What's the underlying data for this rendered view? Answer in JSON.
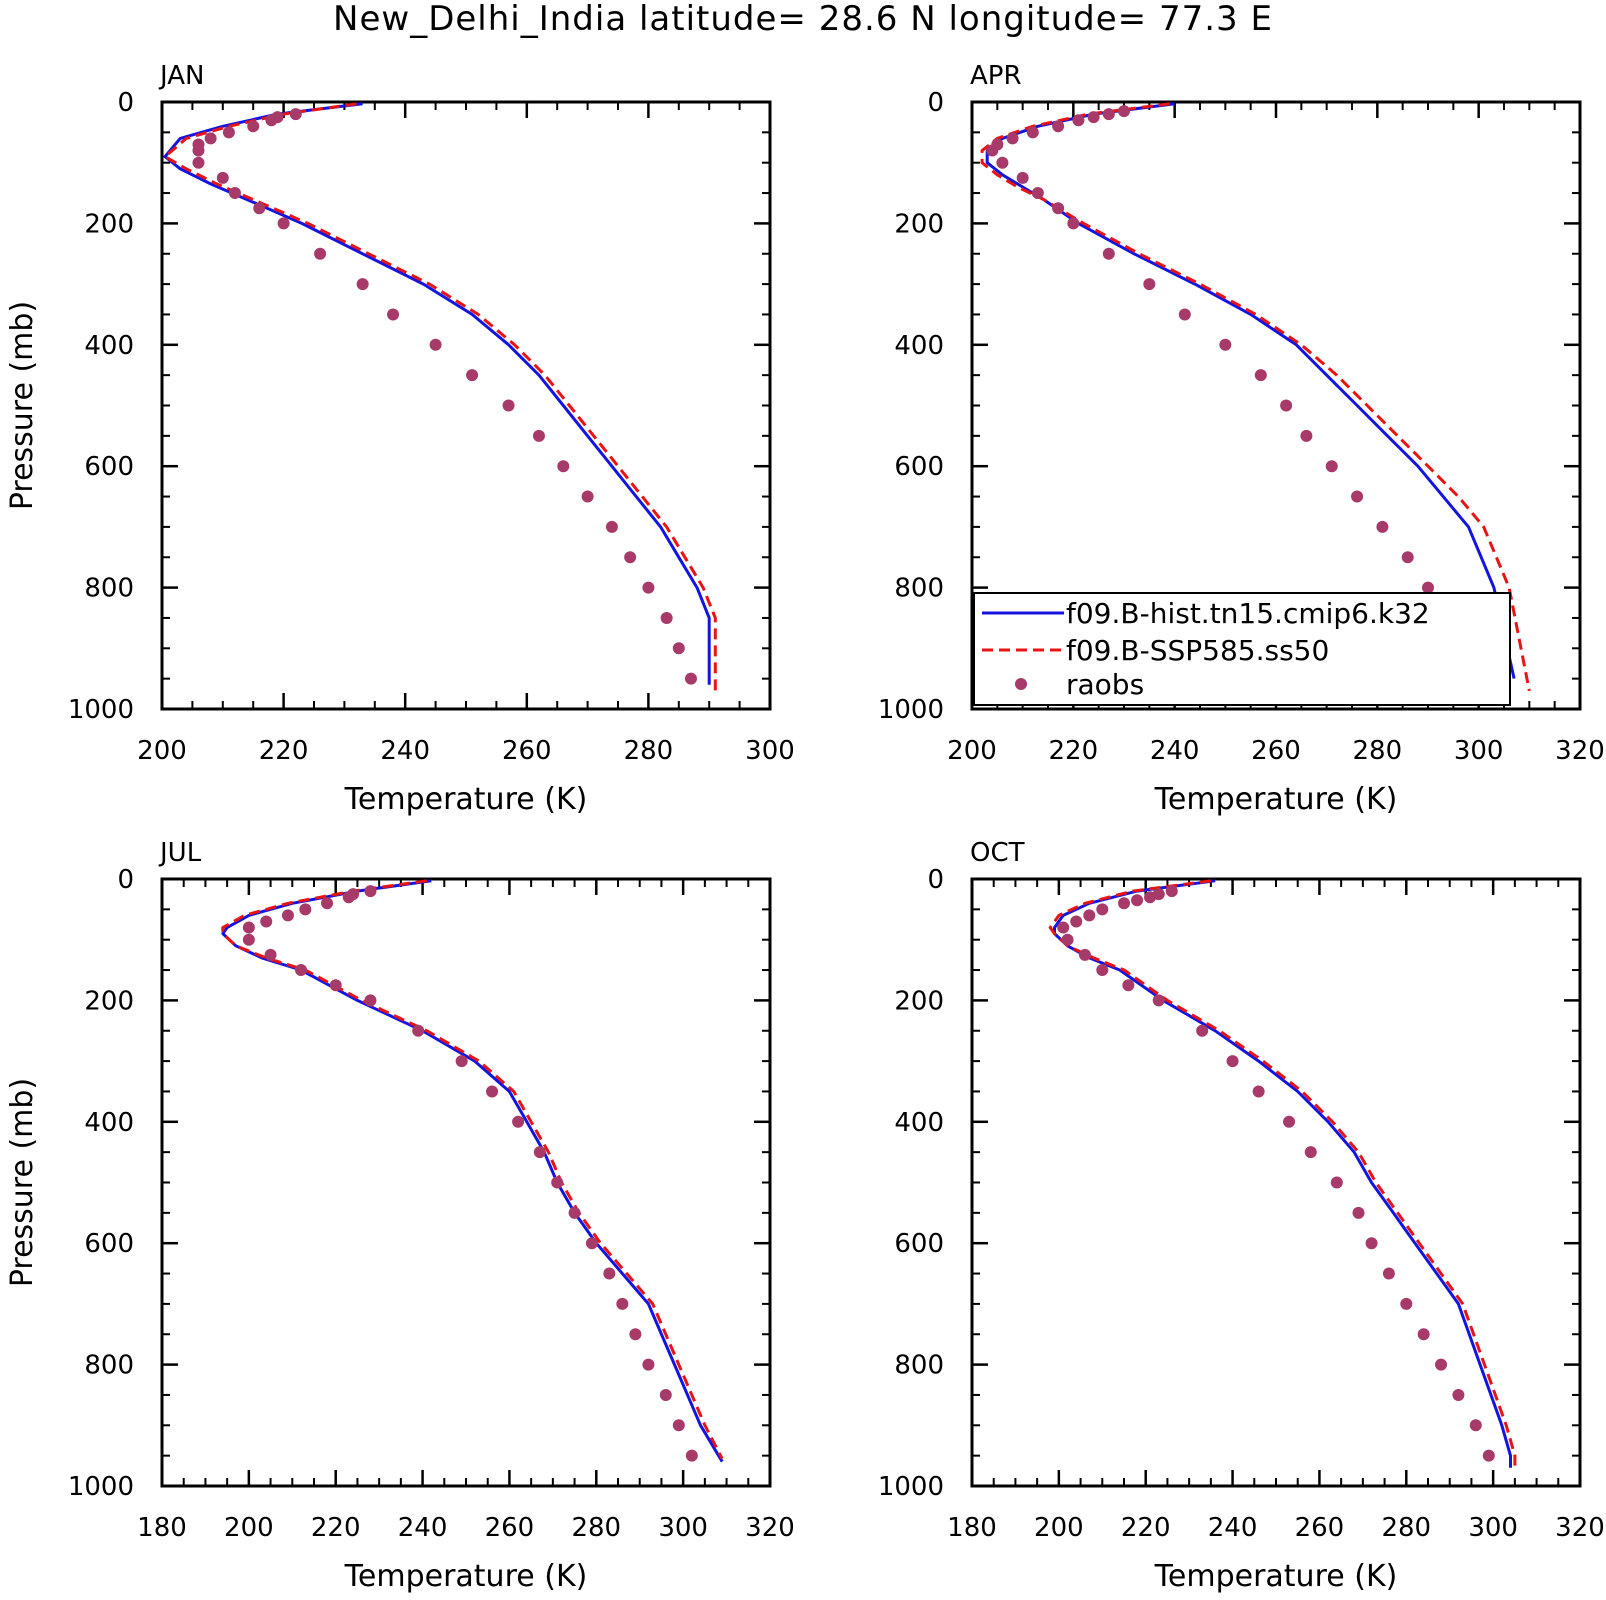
{
  "title": "New_Delhi_India   latitude= 28.6 N longitude= 77.3 E",
  "colors": {
    "model_hist": "#1414e0",
    "model_ssp": "#e81414",
    "raobs": "#a83a6a"
  },
  "legend": {
    "items": [
      {
        "label": "f09.B-hist.tn15.cmip6.k32",
        "style": "solid-blue-line"
      },
      {
        "label": "f09.B-SSP585.ss50",
        "style": "dashed-red-line"
      },
      {
        "label": "raobs",
        "style": "marker"
      }
    ]
  },
  "chart_data": [
    {
      "panel": "JAN",
      "type": "line",
      "xlabel": "Temperature (K)",
      "ylabel": "Pressure (mb)",
      "xlim": [
        200,
        300
      ],
      "ylim": [
        1000,
        0
      ],
      "xticks": [
        200,
        220,
        240,
        260,
        280,
        300
      ],
      "yticks": [
        0,
        200,
        400,
        600,
        800,
        1000
      ],
      "series": [
        {
          "name": "f09.B-hist.tn15.cmip6.k32",
          "x": [
            233,
            219,
            210,
            203,
            200.5,
            203,
            208,
            215,
            223,
            233,
            243,
            251,
            257,
            262,
            266,
            270,
            274,
            278,
            282,
            285,
            288,
            290,
            290
          ],
          "y": [
            3,
            20,
            40,
            60,
            90,
            110,
            135,
            165,
            200,
            250,
            300,
            350,
            400,
            450,
            500,
            550,
            600,
            650,
            700,
            750,
            800,
            850,
            960
          ]
        },
        {
          "name": "f09.B-SSP585.ss50",
          "x": [
            232,
            220,
            211,
            204,
            200.5,
            204,
            209,
            216,
            224,
            234,
            244,
            252,
            258,
            263,
            267,
            271,
            275,
            279,
            283,
            286,
            289,
            291,
            291
          ],
          "y": [
            3,
            20,
            40,
            60,
            90,
            110,
            135,
            165,
            200,
            250,
            300,
            350,
            400,
            450,
            500,
            550,
            600,
            650,
            700,
            750,
            800,
            850,
            970
          ]
        },
        {
          "name": "raobs",
          "type": "scatter",
          "x": [
            222,
            219,
            218,
            215,
            211,
            208,
            206,
            206,
            206,
            210,
            212,
            216,
            220,
            226,
            233,
            238,
            245,
            251,
            257,
            262,
            266,
            270,
            274,
            277,
            280,
            283,
            285,
            287
          ],
          "y": [
            20,
            25,
            30,
            40,
            50,
            60,
            70,
            80,
            100,
            125,
            150,
            175,
            200,
            250,
            300,
            350,
            400,
            450,
            500,
            550,
            600,
            650,
            700,
            750,
            800,
            850,
            900,
            950
          ]
        }
      ]
    },
    {
      "panel": "APR",
      "type": "line",
      "xlabel": "Temperature (K)",
      "ylabel": "",
      "xlim": [
        200,
        320
      ],
      "ylim": [
        1000,
        0
      ],
      "xticks": [
        200,
        220,
        240,
        260,
        280,
        300,
        320
      ],
      "yticks": [
        0,
        200,
        400,
        600,
        800,
        1000
      ],
      "series": [
        {
          "name": "f09.B-hist.tn15.cmip6.k32",
          "x": [
            240,
            224,
            213,
            206,
            203,
            203,
            206,
            210,
            214,
            221,
            232,
            244,
            255,
            264,
            270,
            276,
            282,
            288,
            293,
            298,
            303,
            307
          ],
          "y": [
            3,
            20,
            40,
            60,
            80,
            100,
            120,
            140,
            160,
            200,
            250,
            300,
            350,
            400,
            450,
            500,
            550,
            600,
            650,
            700,
            800,
            950
          ]
        },
        {
          "name": "f09.B-SSP585.ss50",
          "x": [
            239,
            223,
            212,
            205,
            202,
            202,
            205,
            209,
            214,
            222,
            233,
            245,
            256,
            265,
            272,
            278,
            284,
            290,
            296,
            301,
            306,
            310
          ],
          "y": [
            3,
            20,
            40,
            60,
            80,
            100,
            120,
            140,
            160,
            200,
            250,
            300,
            350,
            400,
            450,
            500,
            550,
            600,
            650,
            700,
            800,
            970
          ]
        },
        {
          "name": "raobs",
          "type": "scatter",
          "x": [
            230,
            227,
            224,
            221,
            217,
            212,
            208,
            205,
            204,
            206,
            210,
            213,
            217,
            220,
            227,
            235,
            242,
            250,
            257,
            262,
            266,
            271,
            276,
            281,
            286,
            290,
            295,
            299,
            302
          ],
          "y": [
            15,
            20,
            25,
            30,
            40,
            50,
            60,
            70,
            80,
            100,
            125,
            150,
            175,
            200,
            250,
            300,
            350,
            400,
            450,
            500,
            550,
            600,
            650,
            700,
            750,
            800,
            850,
            900,
            950
          ]
        }
      ]
    },
    {
      "panel": "JUL",
      "type": "line",
      "xlabel": "Temperature (K)",
      "ylabel": "Pressure (mb)",
      "xlim": [
        180,
        320
      ],
      "ylim": [
        1000,
        0
      ],
      "xticks": [
        180,
        200,
        220,
        240,
        260,
        280,
        300,
        320
      ],
      "yticks": [
        0,
        200,
        400,
        600,
        800,
        1000
      ],
      "series": [
        {
          "name": "f09.B-hist.tn15.cmip6.k32",
          "x": [
            242,
            225,
            210,
            200,
            195,
            194,
            197,
            203,
            212,
            225,
            240,
            252,
            260,
            264,
            268,
            271,
            275,
            280,
            286,
            292,
            298,
            304,
            309
          ],
          "y": [
            3,
            20,
            40,
            60,
            80,
            90,
            110,
            130,
            150,
            200,
            250,
            300,
            350,
            400,
            450,
            500,
            550,
            600,
            650,
            700,
            800,
            900,
            960
          ]
        },
        {
          "name": "f09.B-SSP585.ss50",
          "x": [
            241,
            224,
            209,
            199,
            194,
            194,
            197,
            204,
            213,
            226,
            241,
            253,
            261,
            265,
            269,
            272,
            276,
            281,
            287,
            293,
            299,
            305,
            309
          ],
          "y": [
            3,
            20,
            40,
            60,
            80,
            90,
            110,
            130,
            150,
            200,
            250,
            300,
            350,
            400,
            450,
            500,
            550,
            600,
            650,
            700,
            800,
            900,
            955
          ]
        },
        {
          "name": "raobs",
          "type": "scatter",
          "x": [
            228,
            224,
            223,
            218,
            213,
            209,
            204,
            200,
            200,
            205,
            212,
            220,
            228,
            239,
            249,
            256,
            262,
            267,
            271,
            275,
            279,
            283,
            286,
            289,
            292,
            296,
            299,
            302
          ],
          "y": [
            20,
            25,
            30,
            40,
            50,
            60,
            70,
            80,
            100,
            125,
            150,
            175,
            200,
            250,
            300,
            350,
            400,
            450,
            500,
            550,
            600,
            650,
            700,
            750,
            800,
            850,
            900,
            950
          ]
        }
      ]
    },
    {
      "panel": "OCT",
      "type": "line",
      "xlabel": "Temperature (K)",
      "ylabel": "",
      "xlim": [
        180,
        320
      ],
      "ylim": [
        1000,
        0
      ],
      "xticks": [
        180,
        200,
        220,
        240,
        260,
        280,
        300,
        320
      ],
      "yticks": [
        0,
        200,
        400,
        600,
        800,
        1000
      ],
      "series": [
        {
          "name": "f09.B-hist.tn15.cmip6.k32",
          "x": [
            236,
            218,
            207,
            201,
            199,
            199,
            202,
            207,
            214,
            224,
            236,
            246,
            255,
            262,
            268,
            272,
            277,
            282,
            287,
            292,
            297,
            302,
            304,
            304
          ],
          "y": [
            3,
            20,
            40,
            60,
            80,
            90,
            110,
            130,
            150,
            200,
            250,
            300,
            350,
            400,
            450,
            500,
            550,
            600,
            650,
            700,
            800,
            900,
            950,
            970
          ]
        },
        {
          "name": "f09.B-SSP585.ss50",
          "x": [
            235,
            217,
            206,
            200,
            198,
            199,
            202,
            208,
            215,
            225,
            237,
            247,
            256,
            263,
            269,
            273,
            278,
            283,
            288,
            293,
            298,
            303,
            305,
            305
          ],
          "y": [
            3,
            20,
            40,
            60,
            80,
            90,
            110,
            130,
            150,
            200,
            250,
            300,
            350,
            400,
            450,
            500,
            550,
            600,
            650,
            700,
            800,
            900,
            950,
            970
          ]
        },
        {
          "name": "raobs",
          "type": "scatter",
          "x": [
            226,
            223,
            221,
            218,
            215,
            210,
            207,
            204,
            201,
            202,
            206,
            210,
            216,
            223,
            233,
            240,
            246,
            253,
            258,
            264,
            269,
            272,
            276,
            280,
            284,
            288,
            292,
            296,
            299
          ],
          "y": [
            20,
            25,
            30,
            35,
            40,
            50,
            60,
            70,
            80,
            100,
            125,
            150,
            175,
            200,
            250,
            300,
            350,
            400,
            450,
            500,
            550,
            600,
            650,
            700,
            750,
            800,
            850,
            900,
            950
          ]
        }
      ]
    }
  ]
}
